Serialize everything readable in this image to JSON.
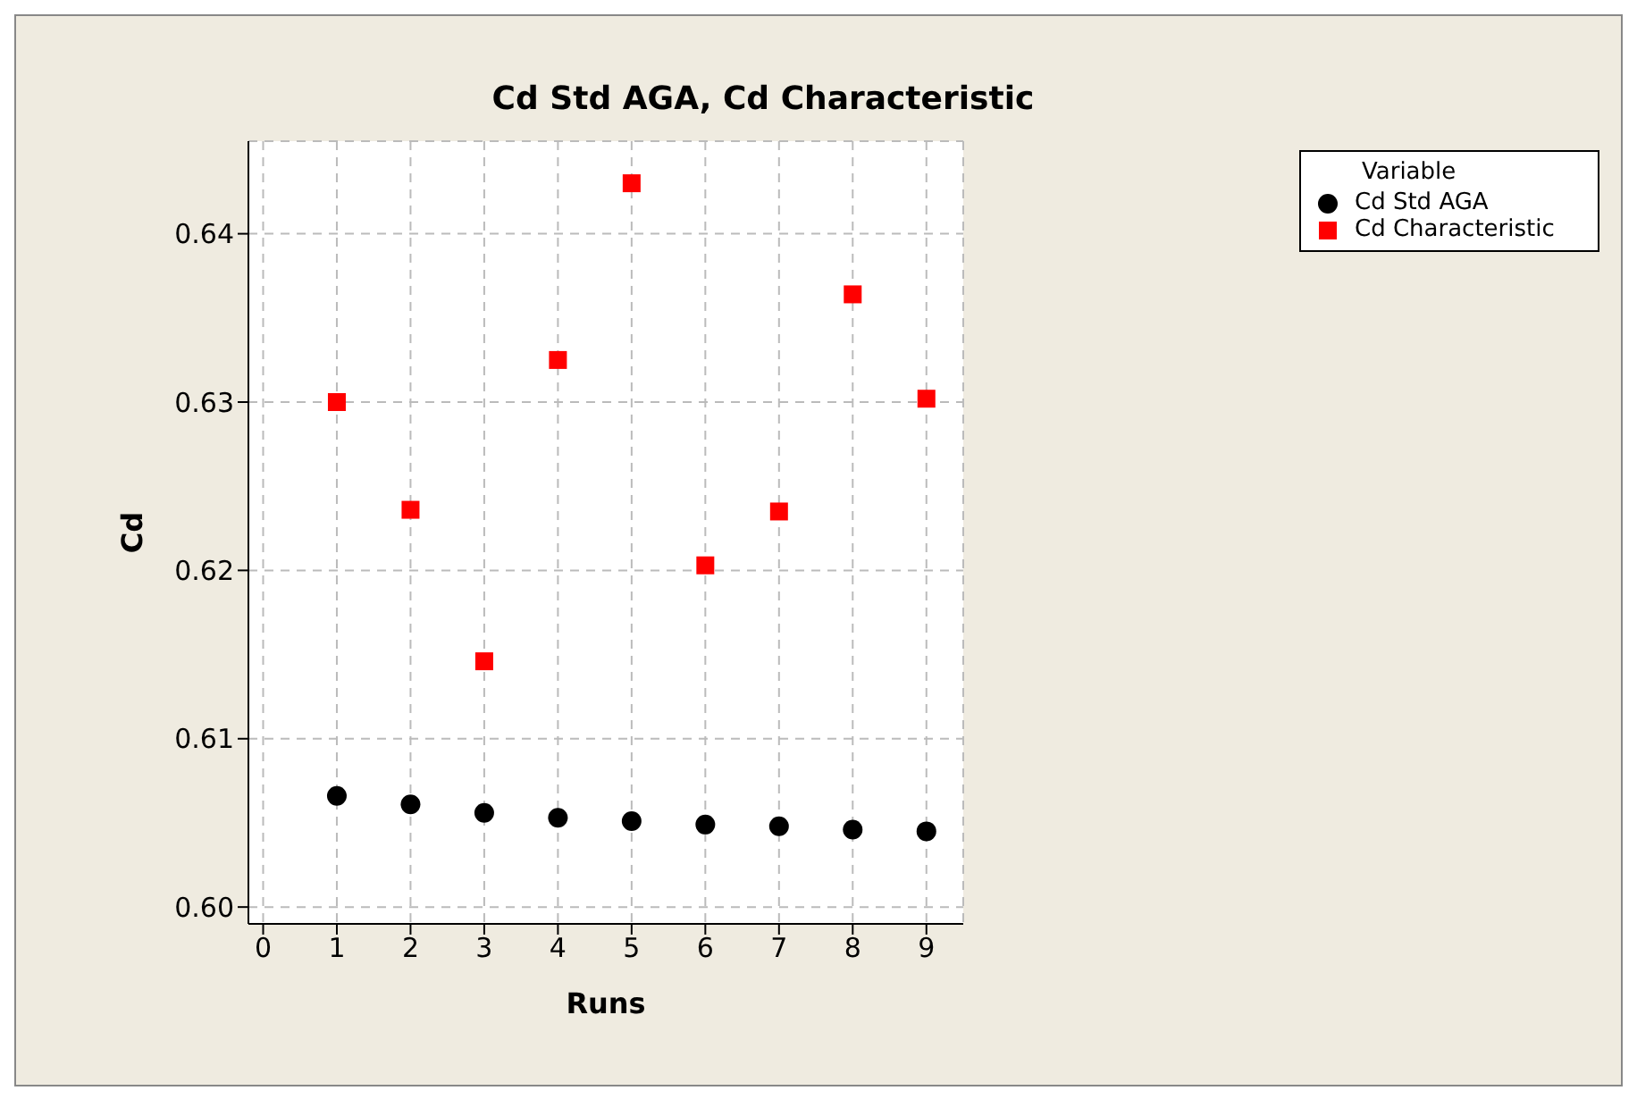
{
  "chart_data": {
    "type": "scatter",
    "title": "Cd Std AGA, Cd Characteristic",
    "xlabel": "Runs",
    "ylabel": "Cd",
    "legend_title": "Variable",
    "x": [
      1,
      2,
      3,
      4,
      5,
      6,
      7,
      8,
      9
    ],
    "series": [
      {
        "name": "Cd Std AGA",
        "color": "#000000",
        "marker": "circle",
        "values": [
          0.6066,
          0.6061,
          0.6056,
          0.6053,
          0.6051,
          0.6049,
          0.6048,
          0.6046,
          0.6045
        ]
      },
      {
        "name": "Cd Characteristic",
        "color": "#ff0000",
        "marker": "square",
        "values": [
          0.63,
          0.6236,
          0.6146,
          0.6325,
          0.643,
          0.6203,
          0.6235,
          0.6364,
          0.6302
        ]
      }
    ],
    "xlim": [
      -0.2,
      9.5
    ],
    "xticks": [
      0,
      1,
      2,
      3,
      4,
      5,
      6,
      7,
      8,
      9
    ],
    "ylim": [
      0.599,
      0.6455
    ],
    "yticks": [
      {
        "value": 0.6,
        "label": "0.60"
      },
      0.61,
      0.62,
      0.63,
      0.64
    ],
    "grid": true,
    "legend": "top right"
  }
}
